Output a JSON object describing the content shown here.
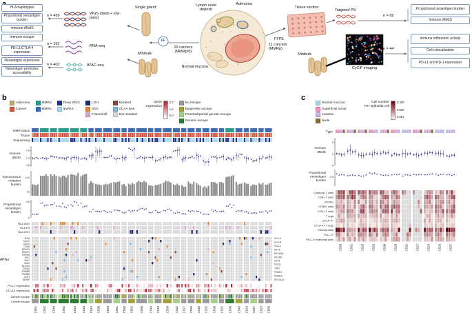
{
  "panels": {
    "a": "a",
    "b": "b",
    "c": "c"
  },
  "colors": {
    "adenoma": "#bfa76f",
    "cancer": "#d9543c",
    "mmrd": "#2a9d8f",
    "mmrp": "#3f6db4",
    "deep_wgs": "#27318f",
    "lpwgs": "#9ed7ee",
    "loh": "#1f2a72",
    "snv": "#e08a3c",
    "frameshift": "#d5a6cf",
    "mutated": "#8c4a3f",
    "scaa_loss": "#7fb8d8",
    "not_mutated": "#d8d8d8",
    "no_escape": "#9b9b9b",
    "epigenetic": "#a3a33b",
    "partial": "#a8d08d",
    "genetic": "#2e7d32",
    "points": "#3d3d8f",
    "bars": "#8a8a8a",
    "neo": "#5b3a9b",
    "normal_mucosa": "#a8d4e8",
    "superficial": "#ef8fc0",
    "invasive": "#c8b3dc",
    "node": "#8a6a3a"
  },
  "panel_a": {
    "left_boxes": [
      "HLA haplotypes",
      "Proportional neoantigen burden",
      "Immune dN/dS",
      "Immune escape",
      "PD-L1/CTLA-4 expression",
      "Neoantigen expression",
      "Neoantigen promotes accessibility"
    ],
    "right_boxes": [
      "Proportional neoantigen burden",
      "Immune dN/dS",
      "Immune infiltration/ activity",
      "Cell colocalization",
      "PD-L1 and PD-1 expression"
    ],
    "n_wgs": "n = 495",
    "n_rna": "n = 162",
    "n_atac": "n = 402",
    "n_ps": "n = 82",
    "n_cycif": "n = 44",
    "wgs_label": "WGS (deep + low-pass)",
    "rna_label": "RNA-seq",
    "atac_label": "ATAC-seq",
    "single_gland": "Single gland",
    "minibulk_left": "Minibulk",
    "ff_badge": "FF",
    "ff_cancers": "29 cancers (MMRp/d)",
    "adenoma": "Adenoma",
    "lymph_node": "Lymph node deposit",
    "normal_mucosa": "Normal mucosa",
    "tissue_section": "Tissue section",
    "ffpe_badge": "FFPE",
    "ffpe_cancers": "11 cancers (MMRp)",
    "minibulk_right": "Minibulk",
    "targeted_ps": "Targeted PS",
    "cycif_label": "CyCIF imaging"
  },
  "panel_b": {
    "legend_groups": [
      [
        {
          "label": "Adenoma",
          "color": "#bfa76f"
        },
        {
          "label": "Cancer",
          "color": "#d9543c"
        }
      ],
      [
        {
          "label": "MMRd",
          "color": "#2a9d8f"
        },
        {
          "label": "MMRp",
          "color": "#3f6db4"
        }
      ],
      [
        {
          "label": "Deep WGS",
          "color": "#27318f"
        },
        {
          "label": "lpWGS",
          "color": "#9ed7ee"
        }
      ],
      [
        {
          "label": "LOH",
          "color": "#1f2a72"
        },
        {
          "label": "SNV",
          "color": "#e08a3c"
        },
        {
          "label": "Frameshift",
          "color": "#d5a6cf"
        }
      ],
      [
        {
          "label": "Mutated",
          "color": "#8c4a3f"
        },
        {
          "label": "SCAA loss",
          "color": "#7fb8d8"
        },
        {
          "label": "Not mutated",
          "color": "#d8d8d8"
        }
      ],
      [
        {
          "label": "No escape",
          "color": "#9b9b9b"
        },
        {
          "label": "Epigenetic escape",
          "color": "#a3a33b"
        },
        {
          "label": "Potential/partial genetic escape",
          "color": "#a8d08d"
        },
        {
          "label": "Genetic escape",
          "color": "#2e7d32"
        }
      ]
    ],
    "expr_legend": {
      "label": "Gene expression",
      "ticks": [
        "2.0",
        "1.0",
        "0.0"
      ]
    },
    "track_labels": {
      "mmr": "MMR status",
      "tissue": "Tissue",
      "seq": "Sequencing",
      "dnds": [
        "Immune",
        "dN/dS"
      ],
      "syn": [
        "Synonymous",
        "mutation",
        "burden"
      ],
      "neo": [
        "Proportional",
        "neoantigen",
        "burden"
      ],
      "hla_snv": "HLA SNV",
      "hla_fs": "HLA FS",
      "hla_loh": "HLA LOH",
      "apgs": "APGs",
      "pdl1": "PD-L1 expression",
      "ctla4": "CTLA-4 expression",
      "sample_escape": "Sample escape",
      "cancer_escape": "Cancer escape"
    },
    "apg_left": [
      "B2M",
      "CALR",
      "CANX",
      "CD58",
      "ERAP1",
      "ERAP2",
      "HSPA5",
      "IRF1",
      "JAK1",
      "JAK2",
      "NLRC5",
      "PDIA3",
      "PSMB8",
      "PSMB9",
      "TAP1",
      "TAPBP"
    ],
    "apg_right": [
      "HLA-A",
      "HLA-B",
      "HLA-C",
      "RFX5",
      "RFXANK",
      "RFXAP",
      "CIITA",
      "STAT1",
      "TAP2",
      "PSME1",
      "PSME3",
      "SEC61A1"
    ],
    "cancers": [
      {
        "id": "C551",
        "n": 4,
        "mmr": "p",
        "aden": 1,
        "escape": "none"
      },
      {
        "id": "C552",
        "n": 5,
        "mmr": "d",
        "aden": 0,
        "escape": "genetic"
      },
      {
        "id": "C548",
        "n": 4,
        "mmr": "d",
        "aden": 0,
        "escape": "genetic"
      },
      {
        "id": "C562",
        "n": 6,
        "mmr": "d",
        "aden": 0,
        "escape": "genetic"
      },
      {
        "id": "C516",
        "n": 5,
        "mmr": "d",
        "aden": 1,
        "escape": "genetic"
      },
      {
        "id": "C518",
        "n": 4,
        "mmr": "d",
        "aden": 1,
        "escape": "genetic"
      },
      {
        "id": "C519",
        "n": 3,
        "mmr": "p",
        "aden": 1,
        "escape": "partial"
      },
      {
        "id": "C538",
        "n": 4,
        "mmr": "p",
        "aden": 1,
        "escape": "epigenetic"
      },
      {
        "id": "C553",
        "n": 5,
        "mmr": "p",
        "aden": 0,
        "escape": "none"
      },
      {
        "id": "C561",
        "n": 4,
        "mmr": "p",
        "aden": 0,
        "escape": "partial"
      },
      {
        "id": "C560",
        "n": 3,
        "mmr": "p",
        "aden": 0,
        "escape": "none"
      },
      {
        "id": "C559",
        "n": 4,
        "mmr": "p",
        "aden": 0,
        "escape": "epigenetic"
      },
      {
        "id": "C550",
        "n": 6,
        "mmr": "p",
        "aden": 0,
        "escape": "none"
      },
      {
        "id": "C544",
        "n": 3,
        "mmr": "p",
        "aden": 0,
        "escape": "partial"
      },
      {
        "id": "C543",
        "n": 4,
        "mmr": "p",
        "aden": 0,
        "escape": "none"
      },
      {
        "id": "C528",
        "n": 5,
        "mmr": "p",
        "aden": 0,
        "escape": "epigenetic"
      },
      {
        "id": "C542",
        "n": 4,
        "mmr": "p",
        "aden": 1,
        "escape": "partial"
      },
      {
        "id": "C527",
        "n": 3,
        "mmr": "p",
        "aden": 0,
        "escape": "none"
      },
      {
        "id": "C539",
        "n": 4,
        "mmr": "p",
        "aden": 0,
        "escape": "none"
      },
      {
        "id": "C545",
        "n": 3,
        "mmr": "p",
        "aden": 0,
        "escape": "epigenetic"
      },
      {
        "id": "C532",
        "n": 4,
        "mmr": "p",
        "aden": 0,
        "escape": "none"
      },
      {
        "id": "C530",
        "n": 4,
        "mmr": "p",
        "aden": 0,
        "escape": "partial"
      },
      {
        "id": "C531",
        "n": 3,
        "mmr": "p",
        "aden": 0,
        "escape": "none"
      },
      {
        "id": "C536",
        "n": 5,
        "mmr": "d",
        "aden": 0,
        "escape": "genetic"
      },
      {
        "id": "C549",
        "n": 4,
        "mmr": "p",
        "aden": 0,
        "escape": "epigenetic"
      },
      {
        "id": "C524",
        "n": 3,
        "mmr": "p",
        "aden": 0,
        "escape": "none"
      },
      {
        "id": "C547",
        "n": 4,
        "mmr": "p",
        "aden": 1,
        "escape": "partial"
      },
      {
        "id": "C525",
        "n": 3,
        "mmr": "p",
        "aden": 0,
        "escape": "none"
      },
      {
        "id": "C555",
        "n": 4,
        "mmr": "p",
        "aden": 0,
        "escape": "none"
      }
    ]
  },
  "panel_c": {
    "legend": [
      {
        "label": "Normal mucosa",
        "color": "#a8d4e8"
      },
      {
        "label": "Superficial tumor",
        "color": "#ef8fc0"
      },
      {
        "label": "Invasive",
        "color": "#c8b3dc"
      },
      {
        "label": "Node",
        "color": "#8a6a3a"
      }
    ],
    "colorbar": {
      "label1": "Cell number",
      "label2": "Per epithelial cell",
      "ticks": [
        "0.400",
        "0.020",
        "0.001"
      ]
    },
    "track_labels": {
      "type": "Type",
      "dnds": [
        "Immune",
        "dN/dS"
      ],
      "neo": [
        "Proportional",
        "neoantigen",
        "burden"
      ]
    },
    "yticks": {
      "dnds": [
        "2",
        "1",
        "0"
      ],
      "neo": [
        "0.5"
      ]
    },
    "cancers": [
      {
        "id": "C550"
      },
      {
        "id": "C561"
      },
      {
        "id": "C525"
      },
      {
        "id": "C529"
      },
      {
        "id": "C530"
      },
      {
        "id": "C528"
      },
      {
        "id": "C531",
        "missing": true
      },
      {
        "id": "C527",
        "missing": true
      },
      {
        "id": "C524"
      },
      {
        "id": "C526"
      },
      {
        "id": "C537"
      }
    ]
  },
  "chart_data": [
    {
      "type": "scatter",
      "title": "Immune dN/dS per cancer (panel b)",
      "categories": [
        "C551",
        "C552",
        "C548",
        "C562",
        "C516",
        "C518",
        "C519",
        "C538",
        "C553",
        "C561",
        "C560",
        "C559",
        "C550",
        "C544",
        "C543",
        "C528",
        "C542",
        "C527",
        "C539",
        "C545",
        "C532",
        "C530",
        "C531",
        "C536",
        "C549",
        "C524",
        "C547",
        "C525",
        "C555"
      ],
      "values": [
        1.0,
        0.9,
        1.1,
        0.95,
        1.0,
        0.85,
        1.2,
        1.8,
        1.1,
        0.9,
        1.0,
        2.2,
        1.0,
        1.1,
        0.8,
        1.0,
        1.9,
        0.9,
        1.0,
        1.2,
        0.7,
        1.0,
        1.1,
        0.9,
        1.3,
        1.0,
        0.8,
        1.0,
        1.05
      ],
      "errors": [
        0.2,
        0.15,
        0.2,
        0.15,
        0.2,
        0.15,
        0.4,
        0.8,
        0.25,
        0.2,
        0.3,
        0.9,
        0.2,
        0.3,
        0.2,
        0.25,
        0.7,
        0.2,
        0.2,
        0.35,
        0.2,
        0.25,
        0.3,
        0.2,
        0.4,
        0.25,
        0.2,
        0.3,
        0.25
      ],
      "yscale": "log",
      "yticks": [
        2.0,
        1.0,
        0.5
      ],
      "ylabel": "Immune dN/dS",
      "grid": false,
      "ref_line": 1.0
    },
    {
      "type": "bar",
      "title": "Synonymous mutation burden (panel b)",
      "categories": [
        "C551",
        "C552",
        "C548",
        "C562",
        "C516",
        "C518",
        "C519",
        "C538",
        "C553",
        "C561",
        "C560",
        "C559",
        "C550",
        "C544",
        "C543",
        "C528",
        "C542",
        "C527",
        "C539",
        "C545",
        "C532",
        "C530",
        "C531",
        "C536",
        "C549",
        "C524",
        "C547",
        "C525",
        "C555"
      ],
      "values": [
        30,
        140,
        160,
        120,
        180,
        150,
        45,
        35,
        40,
        50,
        28,
        38,
        55,
        32,
        36,
        48,
        30,
        26,
        42,
        34,
        24,
        44,
        38,
        130,
        40,
        36,
        30,
        33,
        37
      ],
      "yscale": "log",
      "yticks": [
        100,
        10
      ],
      "ylabel": "Synonymous mutation burden"
    },
    {
      "type": "scatter",
      "title": "Proportional neoantigen burden (panel b)",
      "categories": [
        "C551",
        "C552",
        "C548",
        "C562",
        "C516",
        "C518",
        "C519",
        "C538",
        "C553",
        "C561",
        "C560",
        "C559",
        "C550",
        "C544",
        "C543",
        "C528",
        "C542",
        "C527",
        "C539",
        "C545",
        "C532",
        "C530",
        "C531",
        "C536",
        "C549",
        "C524",
        "C547",
        "C525",
        "C555"
      ],
      "values": [
        0.12,
        0.4,
        0.42,
        0.38,
        0.44,
        0.41,
        0.22,
        0.18,
        0.2,
        0.25,
        0.15,
        0.21,
        0.26,
        0.17,
        0.19,
        0.23,
        0.16,
        0.14,
        0.21,
        0.18,
        0.12,
        0.22,
        0.19,
        0.36,
        0.2,
        0.18,
        0.15,
        0.17,
        0.19
      ],
      "yticks": [
        0.5,
        0
      ],
      "ylabel": "Proportional neoantigen burden",
      "ylim": [
        0,
        0.55
      ]
    },
    {
      "type": "scatter",
      "title": "Immune dN/dS (panel c)",
      "categories": [
        "C550",
        "C561",
        "C525",
        "C529",
        "C530",
        "C528",
        "C531",
        "C527",
        "C524",
        "C526",
        "C537"
      ],
      "values": [
        1.0,
        1.3,
        0.9,
        1.05,
        1.1,
        0.95,
        1.0,
        0.9,
        1.05,
        1.0,
        0.85
      ],
      "errors": [
        0.2,
        0.45,
        0.25,
        0.3,
        0.3,
        0.2,
        0.35,
        0.3,
        0.25,
        0.3,
        0.25
      ],
      "yticks": [
        2,
        1,
        0
      ],
      "ylabel": "Immune dN/dS",
      "ref_line": 1.0
    },
    {
      "type": "scatter",
      "title": "Proportional neoantigen burden (panel c)",
      "categories": [
        "C550",
        "C561",
        "C525",
        "C529",
        "C530",
        "C528",
        "C531",
        "C527",
        "C524",
        "C526",
        "C537"
      ],
      "values": [
        0.62,
        0.6,
        0.58,
        0.66,
        0.61,
        0.63,
        0.59,
        0.6,
        0.64,
        0.62,
        0.6
      ],
      "yticks": [
        0.5
      ],
      "ylabel": "Proportional neoantigen burden"
    },
    {
      "type": "heatmap",
      "title": "Immune cell abundance per region (panel c)",
      "rows": [
        "Cytotoxic T cells",
        "CD8+ T cells",
        "VISTA+",
        "CD68+ cells",
        "CD4+ T cells",
        "T regs",
        "CTLA-4+",
        "CTLA-4+ T regs",
        "Stromal cells",
        "PD-L1+",
        "PD-L1+ epithelial cells"
      ],
      "columns": [
        "C550",
        "C561",
        "C525",
        "C529",
        "C530",
        "C528",
        "C531",
        "C527",
        "C524",
        "C526",
        "C537"
      ],
      "row_intensity": [
        0.55,
        0.6,
        0.35,
        0.5,
        0.55,
        0.3,
        0.25,
        0.2,
        0.8,
        0.4,
        0.3
      ],
      "scale": {
        "label": "Cell number per epithelial cell",
        "ticks": [
          0.4,
          0.02,
          0.001
        ],
        "colormap": "white-to-darkred"
      }
    }
  ]
}
